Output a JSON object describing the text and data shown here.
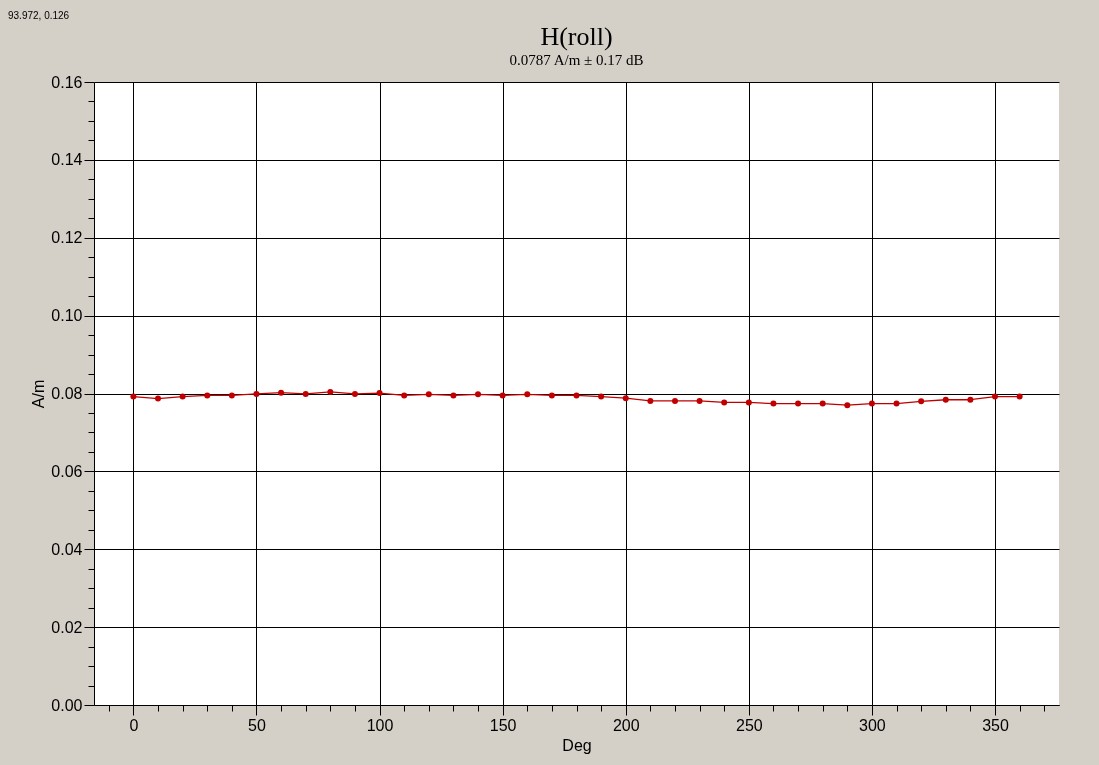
{
  "chart_data": {
    "type": "line",
    "title": "H(roll)",
    "subtitle": "0.0787 A/m ± 0.17 dB",
    "xlabel": "Deg",
    "ylabel": "A/m",
    "annotations": [
      "93.972, 0.126"
    ],
    "x": [
      0,
      10,
      20,
      30,
      40,
      50,
      60,
      70,
      80,
      90,
      100,
      110,
      120,
      130,
      140,
      150,
      160,
      170,
      180,
      190,
      200,
      210,
      220,
      230,
      240,
      250,
      260,
      270,
      280,
      290,
      300,
      310,
      320,
      330,
      340,
      350,
      360
    ],
    "series": [
      {
        "color": "#c00000",
        "values": [
          0.0792,
          0.0787,
          0.0792,
          0.0795,
          0.0795,
          0.0799,
          0.0802,
          0.0799,
          0.0804,
          0.0799,
          0.0801,
          0.0795,
          0.0798,
          0.0795,
          0.0798,
          0.0795,
          0.0798,
          0.0795,
          0.0795,
          0.0792,
          0.0788,
          0.0781,
          0.0781,
          0.0781,
          0.0777,
          0.0777,
          0.0774,
          0.0774,
          0.0774,
          0.077,
          0.0774,
          0.0774,
          0.078,
          0.0784,
          0.0784,
          0.0792,
          0.0792
        ]
      }
    ],
    "xlim": [
      -16,
      376
    ],
    "xticks": [
      {
        "value": -10,
        "label": null
      },
      0,
      {
        "value": 10,
        "label": null
      },
      {
        "value": 20,
        "label": null
      },
      {
        "value": 30,
        "label": null
      },
      {
        "value": 40,
        "label": null
      },
      50,
      {
        "value": 60,
        "label": null
      },
      {
        "value": 70,
        "label": null
      },
      {
        "value": 80,
        "label": null
      },
      {
        "value": 90,
        "label": null
      },
      100,
      {
        "value": 110,
        "label": null
      },
      {
        "value": 120,
        "label": null
      },
      {
        "value": 130,
        "label": null
      },
      {
        "value": 140,
        "label": null
      },
      150,
      {
        "value": 160,
        "label": null
      },
      {
        "value": 170,
        "label": null
      },
      {
        "value": 180,
        "label": null
      },
      {
        "value": 190,
        "label": null
      },
      200,
      {
        "value": 210,
        "label": null
      },
      {
        "value": 220,
        "label": null
      },
      {
        "value": 230,
        "label": null
      },
      {
        "value": 240,
        "label": null
      },
      250,
      {
        "value": 260,
        "label": null
      },
      {
        "value": 270,
        "label": null
      },
      {
        "value": 280,
        "label": null
      },
      {
        "value": 290,
        "label": null
      },
      300,
      {
        "value": 310,
        "label": null
      },
      {
        "value": 320,
        "label": null
      },
      {
        "value": 330,
        "label": null
      },
      {
        "value": 340,
        "label": null
      },
      350,
      {
        "value": 360,
        "label": null
      },
      {
        "value": 370,
        "label": null
      }
    ],
    "ylim": [
      0,
      0.16
    ],
    "yticks": [
      {
        "value": 0,
        "label": "0.00"
      },
      {
        "value": 0.005,
        "label": null
      },
      {
        "value": 0.01,
        "label": null
      },
      {
        "value": 0.015,
        "label": null
      },
      {
        "value": 0.02,
        "label": "0.02"
      },
      {
        "value": 0.025,
        "label": null
      },
      {
        "value": 0.03,
        "label": null
      },
      {
        "value": 0.035,
        "label": null
      },
      {
        "value": 0.04,
        "label": "0.04"
      },
      {
        "value": 0.045,
        "label": null
      },
      {
        "value": 0.05,
        "label": null
      },
      {
        "value": 0.055,
        "label": null
      },
      {
        "value": 0.06,
        "label": "0.06"
      },
      {
        "value": 0.065,
        "label": null
      },
      {
        "value": 0.07,
        "label": null
      },
      {
        "value": 0.075,
        "label": null
      },
      {
        "value": 0.08,
        "label": "0.08"
      },
      {
        "value": 0.085,
        "label": null
      },
      {
        "value": 0.09,
        "label": null
      },
      {
        "value": 0.095,
        "label": null
      },
      {
        "value": 0.1,
        "label": "0.10"
      },
      {
        "value": 0.105,
        "label": null
      },
      {
        "value": 0.11,
        "label": null
      },
      {
        "value": 0.115,
        "label": null
      },
      {
        "value": 0.12,
        "label": "0.12"
      },
      {
        "value": 0.125,
        "label": null
      },
      {
        "value": 0.13,
        "label": null
      },
      {
        "value": 0.135,
        "label": null
      },
      {
        "value": 0.14,
        "label": "0.14"
      },
      {
        "value": 0.145,
        "label": null
      },
      {
        "value": 0.15,
        "label": null
      },
      {
        "value": 0.155,
        "label": null
      },
      {
        "value": 0.16,
        "label": "0.16"
      }
    ],
    "grid": true,
    "marker": "circle",
    "line_style": "solid"
  }
}
